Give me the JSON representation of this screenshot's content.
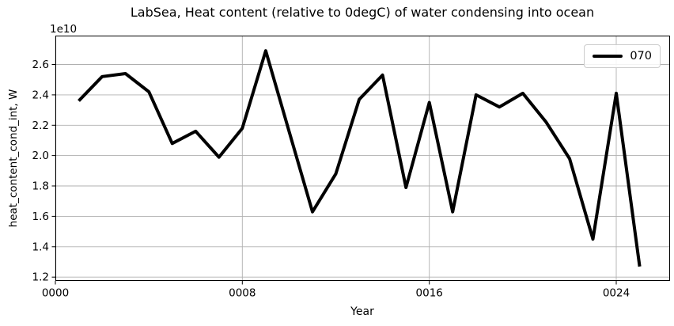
{
  "figure": {
    "title": "LabSea, Heat content (relative to 0degC) of water condensing into ocean",
    "offset_text": "1e10",
    "xlabel": "Year",
    "ylabel": "heat_content_cond_int, W",
    "background_color": "#ffffff",
    "text_color": "#000000"
  },
  "legend": {
    "label": "070",
    "line_color": "#000000",
    "border_color": "#cccccc",
    "position": "upper right"
  },
  "chart_data": {
    "type": "line",
    "title": "LabSea, Heat content (relative to 0degC) of water condensing into ocean",
    "xlabel": "Year",
    "ylabel": "heat_content_cond_int, W",
    "offset_text": "1e10",
    "y_scale_factor": 10000000000.0,
    "x": [
      1,
      2,
      3,
      4,
      5,
      6,
      7,
      8,
      9,
      10,
      11,
      12,
      13,
      14,
      15,
      16,
      17,
      18,
      19,
      20,
      21,
      22,
      23,
      24,
      25
    ],
    "series": [
      {
        "name": "070",
        "color": "#000000",
        "linewidth": 4,
        "values": [
          2.36,
          2.52,
          2.54,
          2.42,
          2.08,
          2.16,
          1.99,
          2.18,
          2.69,
          2.16,
          1.63,
          1.88,
          2.37,
          2.53,
          1.79,
          2.35,
          1.63,
          2.4,
          2.32,
          2.41,
          2.22,
          1.98,
          1.45,
          2.41,
          1.27
        ]
      }
    ],
    "xticks": [
      0,
      8,
      16,
      24
    ],
    "xticklabels": [
      "0000",
      "0008",
      "0016",
      "0024"
    ],
    "yticks": [
      1.2,
      1.4,
      1.6,
      1.8,
      2.0,
      2.2,
      2.4,
      2.6
    ],
    "xlim": [
      0,
      26.3
    ],
    "ylim": [
      1.175,
      2.79
    ],
    "grid": true,
    "grid_color": "#b0b0b0",
    "legend_position": "upper right"
  }
}
